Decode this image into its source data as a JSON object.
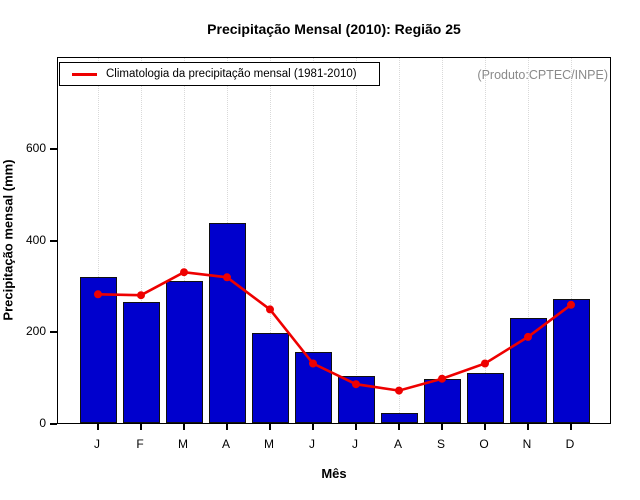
{
  "page": {
    "title": "Precipitação Mensal (2010): Região 25",
    "annotation": "(Produto:CPTEC/INPE)"
  },
  "legend": {
    "label": "Climatologia da precipitação mensal (1981-2010)"
  },
  "chart_data": {
    "type": "bar",
    "title": "Precipitação Mensal (2010): Região 25",
    "xlabel": "Mês",
    "ylabel": "Precipitação mensal (mm)",
    "categories": [
      "J",
      "F",
      "M",
      "A",
      "M",
      "J",
      "J",
      "A",
      "S",
      "O",
      "N",
      "D"
    ],
    "series": [
      {
        "name": "Precipitação mensal 2010",
        "type": "bar",
        "color": "#0000cd",
        "values": [
          318,
          264,
          310,
          435,
          196,
          155,
          103,
          22,
          97,
          110,
          229,
          270
        ]
      },
      {
        "name": "Climatologia da precipitação mensal (1981-2010)",
        "type": "line",
        "color": "#ee0000",
        "values": [
          285,
          283,
          333,
          322,
          252,
          134,
          89,
          75,
          101,
          134,
          192,
          262
        ]
      }
    ],
    "ylim": [
      0,
      800
    ],
    "yticks": [
      0,
      200,
      400,
      600
    ],
    "grid": "vertical-dotted",
    "grid_color": "#d9d9d9",
    "legend_position": "top-left",
    "annotation": "(Produto:CPTEC/INPE)"
  }
}
